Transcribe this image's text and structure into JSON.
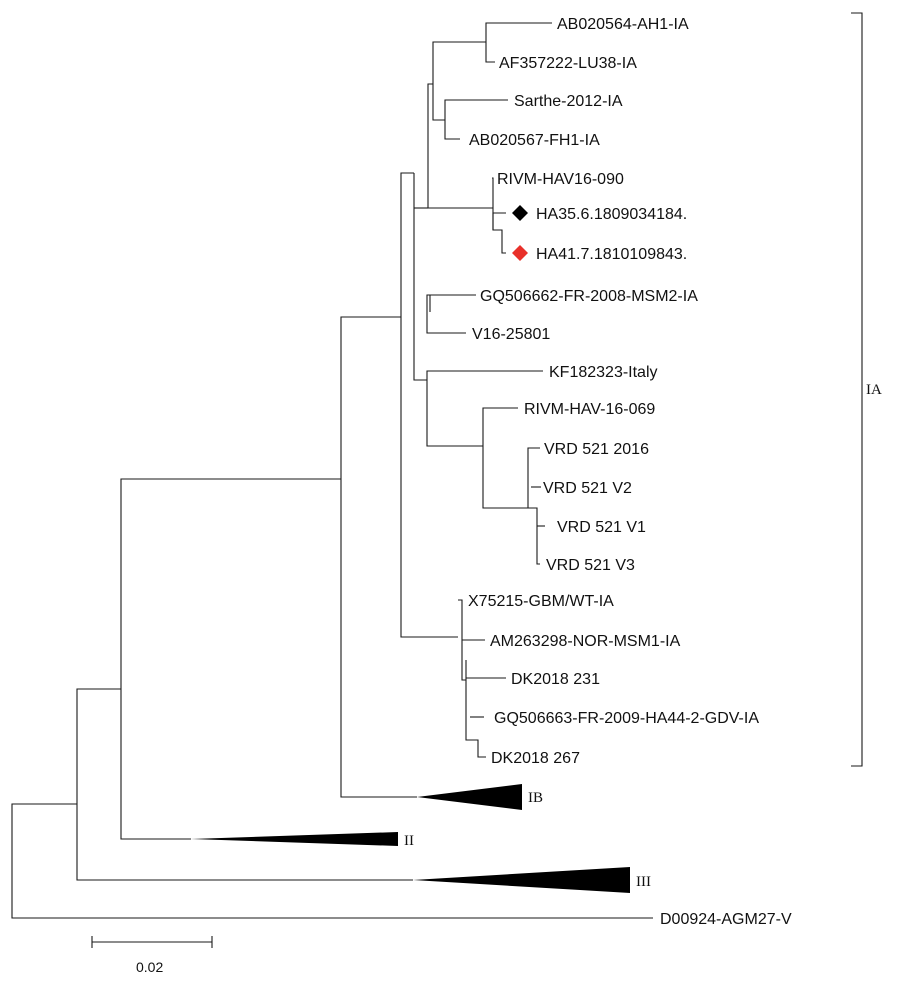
{
  "tree": {
    "leaves": [
      {
        "id": "l1",
        "label": "AB020564-AH1-IA"
      },
      {
        "id": "l2",
        "label": "AF357222-LU38-IA"
      },
      {
        "id": "l3",
        "label": "Sarthe-2012-IA"
      },
      {
        "id": "l4",
        "label": "AB020567-FH1-IA"
      },
      {
        "id": "l5",
        "label": "RIVM-HAV16-090"
      },
      {
        "id": "l6",
        "label": "HA35.6.1809034184.",
        "marker": "diamond",
        "marker_color": "#000000"
      },
      {
        "id": "l7",
        "label": "HA41.7.1810109843.",
        "marker": "diamond",
        "marker_color": "#e8302a"
      },
      {
        "id": "l8",
        "label": "GQ506662-FR-2008-MSM2-IA"
      },
      {
        "id": "l9",
        "label": "V16-25801"
      },
      {
        "id": "l10",
        "label": "KF182323-Italy"
      },
      {
        "id": "l11",
        "label": "RIVM-HAV-16-069"
      },
      {
        "id": "l12",
        "label": "VRD 521 2016"
      },
      {
        "id": "l13",
        "label": "VRD 521 V2"
      },
      {
        "id": "l14",
        "label": "VRD 521 V1"
      },
      {
        "id": "l15",
        "label": "VRD 521 V3"
      },
      {
        "id": "l16",
        "label": "X75215-GBM/WT-IA"
      },
      {
        "id": "l17",
        "label": "AM263298-NOR-MSM1-IA"
      },
      {
        "id": "l18",
        "label": "DK2018 231"
      },
      {
        "id": "l19",
        "label": "GQ506663-FR-2009-HA44-2-GDV-IA"
      },
      {
        "id": "l20",
        "label": "DK2018 267"
      },
      {
        "id": "l21",
        "label": "D00924-AGM27-V"
      }
    ],
    "collapsed_clades": [
      {
        "id": "c1",
        "label": "IB"
      },
      {
        "id": "c2",
        "label": "II"
      },
      {
        "id": "c3",
        "label": "III"
      }
    ],
    "bracket_label": "IA",
    "scale_bar_label": "0.02"
  }
}
